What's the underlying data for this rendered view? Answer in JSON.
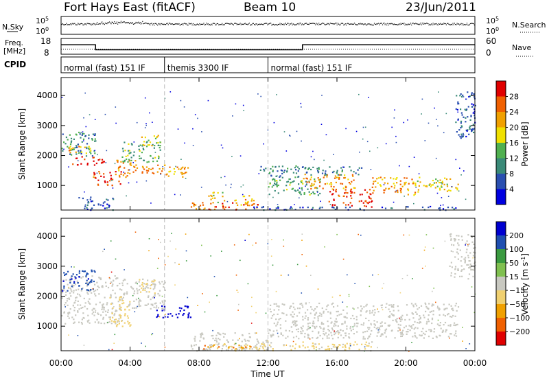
{
  "header": {
    "station": "Fort Hays East (fitACF)",
    "beam": "Beam 10",
    "date": "23/Jun/2011"
  },
  "noise_panel": {
    "left_label": "N.Sky",
    "right_label": "N.Search",
    "left_ticks": [
      "10^5",
      "10^0"
    ],
    "right_ticks": [
      "10^5",
      "10^0"
    ]
  },
  "freq_panel": {
    "left_label_line1": "Freq.",
    "left_label_line2": "[MHz]",
    "right_label": "Nave",
    "left_ticks": [
      "18",
      "8"
    ],
    "right_ticks": [
      "60",
      "0"
    ],
    "freq_mhz": [
      {
        "from": 0,
        "to": 2,
        "value": 14.2
      },
      {
        "from": 2,
        "to": 14,
        "value": 10.4
      },
      {
        "from": 14,
        "to": 24,
        "value": 14.2
      }
    ],
    "nave": [
      {
        "from": 0,
        "to": 24,
        "value": 17
      }
    ]
  },
  "cpid": {
    "label": "CPID",
    "segments": [
      {
        "from": 0,
        "to": 6,
        "name": "normal (fast) 151 IF"
      },
      {
        "from": 6,
        "to": 12,
        "name": "themis 3300 IF"
      },
      {
        "from": 12,
        "to": 24,
        "name": "normal (fast) 151 IF"
      }
    ]
  },
  "x_axis": {
    "label": "Time UT",
    "ticks": [
      "00:00",
      "04:00",
      "08:00",
      "12:00",
      "16:00",
      "20:00",
      "00:00"
    ]
  },
  "chart_data": [
    {
      "type": "heatmap",
      "title": "",
      "xlabel": "",
      "ylabel": "Slant Range [km]",
      "xlim": [
        0,
        24
      ],
      "ylim": [
        180,
        4600
      ],
      "yticks": [
        1000,
        2000,
        3000,
        4000
      ],
      "colorbar": {
        "label": "Power [dB]",
        "ticks": [
          "4",
          "8",
          "12",
          "16",
          "20",
          "24",
          "28"
        ],
        "range": [
          0,
          30
        ],
        "colors": [
          "#0000e0",
          "#2a4fb0",
          "#3a8a78",
          "#50b050",
          "#f0e000",
          "#f0a000",
          "#f06000",
          "#e00000"
        ]
      },
      "regions": [
        {
          "t0": 0,
          "t1": 2,
          "r0": 2000,
          "r1": 2800,
          "value": 10
        },
        {
          "t0": 0.4,
          "t1": 1.8,
          "r0": 2100,
          "r1": 2400,
          "value": 20
        },
        {
          "t0": 0.6,
          "t1": 2.5,
          "r0": 1700,
          "r1": 2000,
          "value": 28
        },
        {
          "t0": 1.8,
          "t1": 3.5,
          "r0": 1000,
          "r1": 1500,
          "value": 26
        },
        {
          "t0": 3.2,
          "t1": 4.5,
          "r0": 1300,
          "r1": 1900,
          "value": 22
        },
        {
          "t0": 3.5,
          "t1": 5.8,
          "r0": 1800,
          "r1": 2500,
          "value": 12
        },
        {
          "t0": 4.6,
          "t1": 5.6,
          "r0": 2300,
          "r1": 2700,
          "value": 18
        },
        {
          "t0": 4.6,
          "t1": 5.6,
          "r0": 1400,
          "r1": 1800,
          "value": 22
        },
        {
          "t0": 5.6,
          "t1": 7.5,
          "r0": 1300,
          "r1": 1700,
          "value": 20
        },
        {
          "t0": 1.0,
          "t1": 3.0,
          "r0": 200,
          "r1": 650,
          "value": 6
        },
        {
          "t0": 7.5,
          "t1": 11.5,
          "r0": 200,
          "r1": 450,
          "value": 24
        },
        {
          "t0": 8.5,
          "t1": 9.5,
          "r0": 400,
          "r1": 800,
          "value": 18
        },
        {
          "t0": 10.0,
          "t1": 11.2,
          "r0": 350,
          "r1": 700,
          "value": 20
        },
        {
          "t0": 11.5,
          "t1": 14.2,
          "r0": 1300,
          "r1": 1700,
          "value": 8
        },
        {
          "t0": 12.0,
          "t1": 15.0,
          "r0": 700,
          "r1": 1300,
          "value": 12
        },
        {
          "t0": 14.0,
          "t1": 17.0,
          "r0": 900,
          "r1": 1400,
          "value": 22
        },
        {
          "t0": 15.5,
          "t1": 18.0,
          "r0": 300,
          "r1": 900,
          "value": 26
        },
        {
          "t0": 14.0,
          "t1": 17.5,
          "r0": 1350,
          "r1": 1650,
          "value": 8
        },
        {
          "t0": 18.0,
          "t1": 20.5,
          "r0": 700,
          "r1": 1300,
          "value": 20
        },
        {
          "t0": 20.5,
          "t1": 23.0,
          "r0": 800,
          "r1": 1300,
          "value": 18
        },
        {
          "t0": 11.0,
          "t1": 23.0,
          "r0": 200,
          "r1": 320,
          "value": 6
        },
        {
          "t0": 22.8,
          "t1": 24.0,
          "r0": 2600,
          "r1": 4200,
          "value": 6
        }
      ]
    },
    {
      "type": "heatmap",
      "title": "",
      "xlabel": "Time UT",
      "ylabel": "Slant Range [km]",
      "xlim": [
        0,
        24
      ],
      "ylim": [
        180,
        4600
      ],
      "yticks": [
        1000,
        2000,
        3000,
        4000
      ],
      "colorbar": {
        "label": "Velocity [m s^-1]",
        "ticks": [
          "200",
          "100",
          "50",
          "15",
          "−15",
          "−50",
          "−100",
          "−200"
        ],
        "range": [
          -250,
          250
        ],
        "colors": [
          "#e00000",
          "#f06000",
          "#f0a000",
          "#f0d070",
          "#c8c8c0",
          "#80c050",
          "#3a9a40",
          "#1f4fb0",
          "#0000d0"
        ]
      },
      "regions": [
        {
          "t0": 0,
          "t1": 3.5,
          "r0": 1100,
          "r1": 2700,
          "value": 0
        },
        {
          "t0": 0,
          "t1": 2.0,
          "r0": 2200,
          "r1": 2900,
          "value": 180
        },
        {
          "t0": 2.8,
          "t1": 4.0,
          "r0": 1000,
          "r1": 2000,
          "value": -60
        },
        {
          "t0": 3.5,
          "t1": 6.0,
          "r0": 1600,
          "r1": 2600,
          "value": 0
        },
        {
          "t0": 4.5,
          "t1": 5.5,
          "r0": 2100,
          "r1": 2600,
          "value": -40
        },
        {
          "t0": 5.5,
          "t1": 7.5,
          "r0": 1300,
          "r1": 1700,
          "value": 230
        },
        {
          "t0": 7.5,
          "t1": 12.0,
          "r0": 200,
          "r1": 800,
          "value": 0
        },
        {
          "t0": 9.0,
          "t1": 12.0,
          "r0": 200,
          "r1": 450,
          "value": -60
        },
        {
          "t0": 8.0,
          "t1": 11.0,
          "r0": 250,
          "r1": 400,
          "value": -130
        },
        {
          "t0": 12.0,
          "t1": 23.0,
          "r0": 600,
          "r1": 1800,
          "value": 0
        },
        {
          "t0": 12.0,
          "t1": 18.0,
          "r0": 200,
          "r1": 500,
          "value": -40
        },
        {
          "t0": 22.5,
          "t1": 24.0,
          "r0": 2600,
          "r1": 4100,
          "value": 0
        }
      ]
    }
  ]
}
